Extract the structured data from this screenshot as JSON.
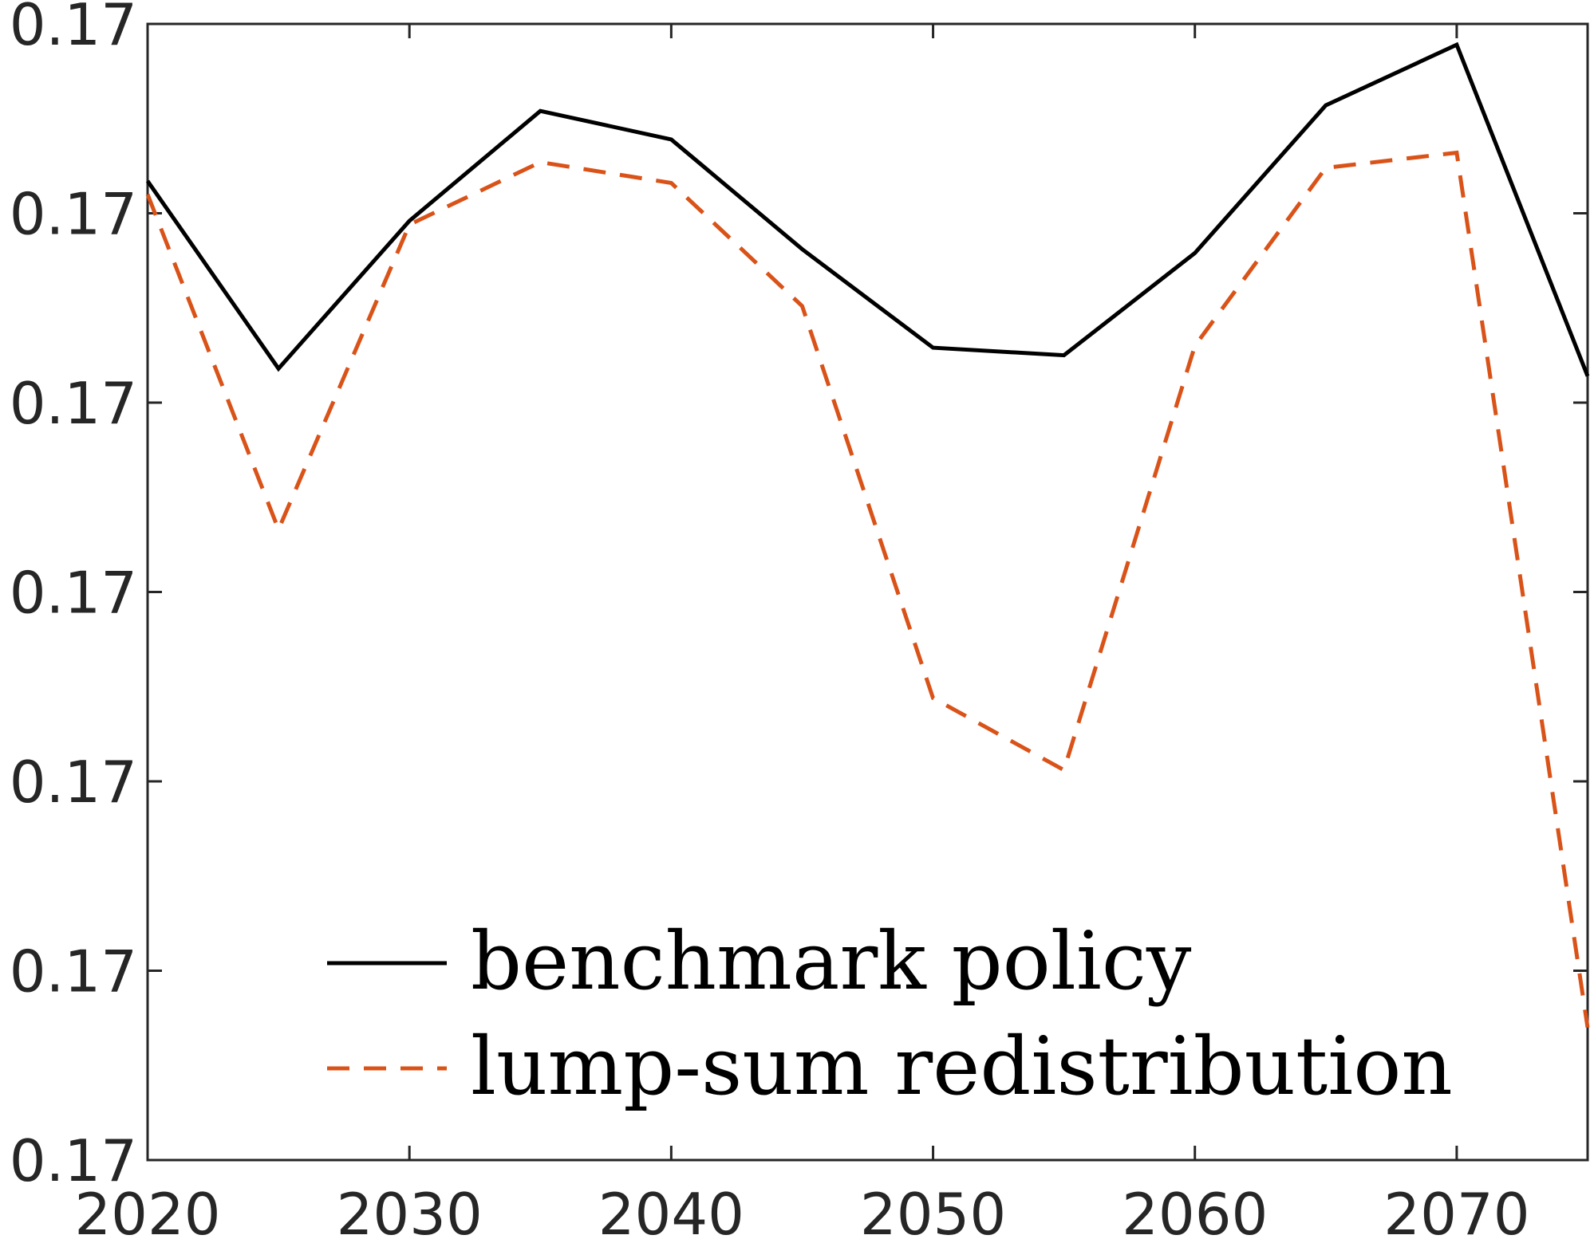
{
  "chart_data": {
    "type": "line",
    "title": "",
    "xlabel": "",
    "ylabel": "",
    "x": [
      2020,
      2025,
      2030,
      2035,
      2040,
      2045,
      2050,
      2055,
      2060,
      2065,
      2070,
      2075
    ],
    "xlim": [
      2020,
      2075
    ],
    "ylim": [
      0.17,
      0.1706
    ],
    "x_ticks": [
      2020,
      2030,
      2040,
      2050,
      2060,
      2070
    ],
    "x_tick_labels": [
      "2020",
      "2030",
      "2040",
      "2050",
      "2060",
      "2070"
    ],
    "y_ticks": [
      0.17,
      0.1701,
      0.1702,
      0.1703,
      0.1704,
      0.1705,
      0.1706
    ],
    "y_tick_labels": [
      "0.17",
      "0.17",
      "0.17",
      "0.17",
      "0.17",
      "0.17",
      "0.17"
    ],
    "grid": false,
    "legend": "bottom-center",
    "series": [
      {
        "name": "benchmark policy",
        "color": "#000000",
        "style": "solid",
        "values": [
          0.170517,
          0.170418,
          0.170496,
          0.170554,
          0.170539,
          0.170481,
          0.170429,
          0.170425,
          0.170479,
          0.170557,
          0.170589,
          0.170414
        ]
      },
      {
        "name": "lump-sum redistribution",
        "color": "#D95319",
        "style": "dashed",
        "values": [
          0.17051,
          0.170333,
          0.170494,
          0.170527,
          0.170516,
          0.170451,
          0.170244,
          0.170206,
          0.17043,
          0.170524,
          0.170532,
          0.17007
        ]
      }
    ]
  }
}
